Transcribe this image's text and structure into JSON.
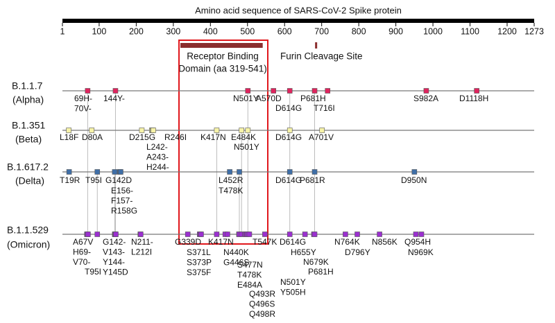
{
  "title": "Amino acid sequence of SARS-CoV-2 Spike protein",
  "axis": {
    "range": [
      1,
      1273
    ],
    "ticks": [
      1,
      100,
      200,
      300,
      400,
      500,
      600,
      700,
      800,
      900,
      1000,
      1100,
      1200,
      1273
    ]
  },
  "rbd": {
    "label": [
      "Receptor Binding",
      "Domain (aa 319-541)"
    ],
    "start": 319,
    "end": 541,
    "color": "#8b2e2e"
  },
  "furin": {
    "label": "Furin Cleavage Site",
    "position": 685,
    "color": "#8b2e2e"
  },
  "lineages": [
    {
      "name": "B.1.1.7",
      "variant": "(Alpha)",
      "color": "#e0245e",
      "positions": [
        69,
        144,
        501,
        570,
        614,
        681,
        716,
        982,
        1118
      ],
      "labels": [
        [
          "69H-",
          "70V-"
        ],
        [
          "144Y-"
        ],
        [
          "N501Y"
        ],
        [
          "A570D"
        ],
        [
          "D614G"
        ],
        [
          "P681H"
        ],
        [
          "T716I"
        ],
        [
          "S982A"
        ],
        [
          "D1118H"
        ]
      ]
    },
    {
      "name": "B.1.351",
      "variant": "(Beta)",
      "color": "#f6f2a8",
      "positions": [
        18,
        80,
        215,
        242,
        244,
        246,
        417,
        484,
        501,
        614,
        701
      ],
      "labels": [
        [
          "L18F"
        ],
        [
          "D80A"
        ],
        [
          "D215G"
        ],
        [
          "L242-",
          "A243-",
          "H244-"
        ],
        [
          "R246I"
        ],
        [
          "K417N"
        ],
        [
          "E484K"
        ],
        [
          "N501Y"
        ],
        [
          "D614G"
        ],
        [
          "A701V"
        ]
      ]
    },
    {
      "name": "B.1.617.2",
      "variant": "(Delta)",
      "color": "#3f6fa8",
      "positions": [
        19,
        95,
        142,
        156,
        158,
        452,
        478,
        614,
        681,
        950
      ],
      "labels": [
        [
          "T19R"
        ],
        [
          "T95I"
        ],
        [
          "G142D"
        ],
        [
          "E156-",
          "F157-",
          "R158G"
        ],
        [
          "L452R"
        ],
        [
          "T478K"
        ],
        [
          "D614G"
        ],
        [
          "P681R"
        ],
        [
          "D950N"
        ]
      ]
    },
    {
      "name": "B.1.1.529",
      "variant": "(Omicron)",
      "color": "#9b30d0",
      "positions": [
        67,
        69,
        70,
        95,
        142,
        143,
        144,
        145,
        211,
        212,
        339,
        371,
        373,
        375,
        417,
        440,
        446,
        477,
        478,
        484,
        493,
        496,
        498,
        501,
        505,
        547,
        614,
        655,
        679,
        681,
        764,
        796,
        856,
        954,
        969
      ],
      "labels": [
        [
          "A67V",
          "H69-",
          "V70-"
        ],
        [
          "T95I"
        ],
        [
          "G142-",
          "V143-",
          "Y144-",
          "Y145D"
        ],
        [
          "N211-",
          "L212I"
        ],
        [
          "G339D"
        ],
        [
          "S371L",
          "S373P",
          "S375F"
        ],
        [
          "K417N"
        ],
        [
          "N440K",
          "G446S"
        ],
        [
          "S477N",
          "T478K",
          "E484A"
        ],
        [
          "Q493R",
          "Q496S",
          "Q498R"
        ],
        [
          "T547K"
        ],
        [
          "D614G"
        ],
        [
          "N501Y",
          "Y505H"
        ],
        [
          "H655Y"
        ],
        [
          "N679K"
        ],
        [
          "P681H"
        ],
        [
          "N764K"
        ],
        [
          "D796Y"
        ],
        [
          "N856K"
        ],
        [
          "Q954H"
        ],
        [
          "N969K"
        ]
      ]
    }
  ]
}
